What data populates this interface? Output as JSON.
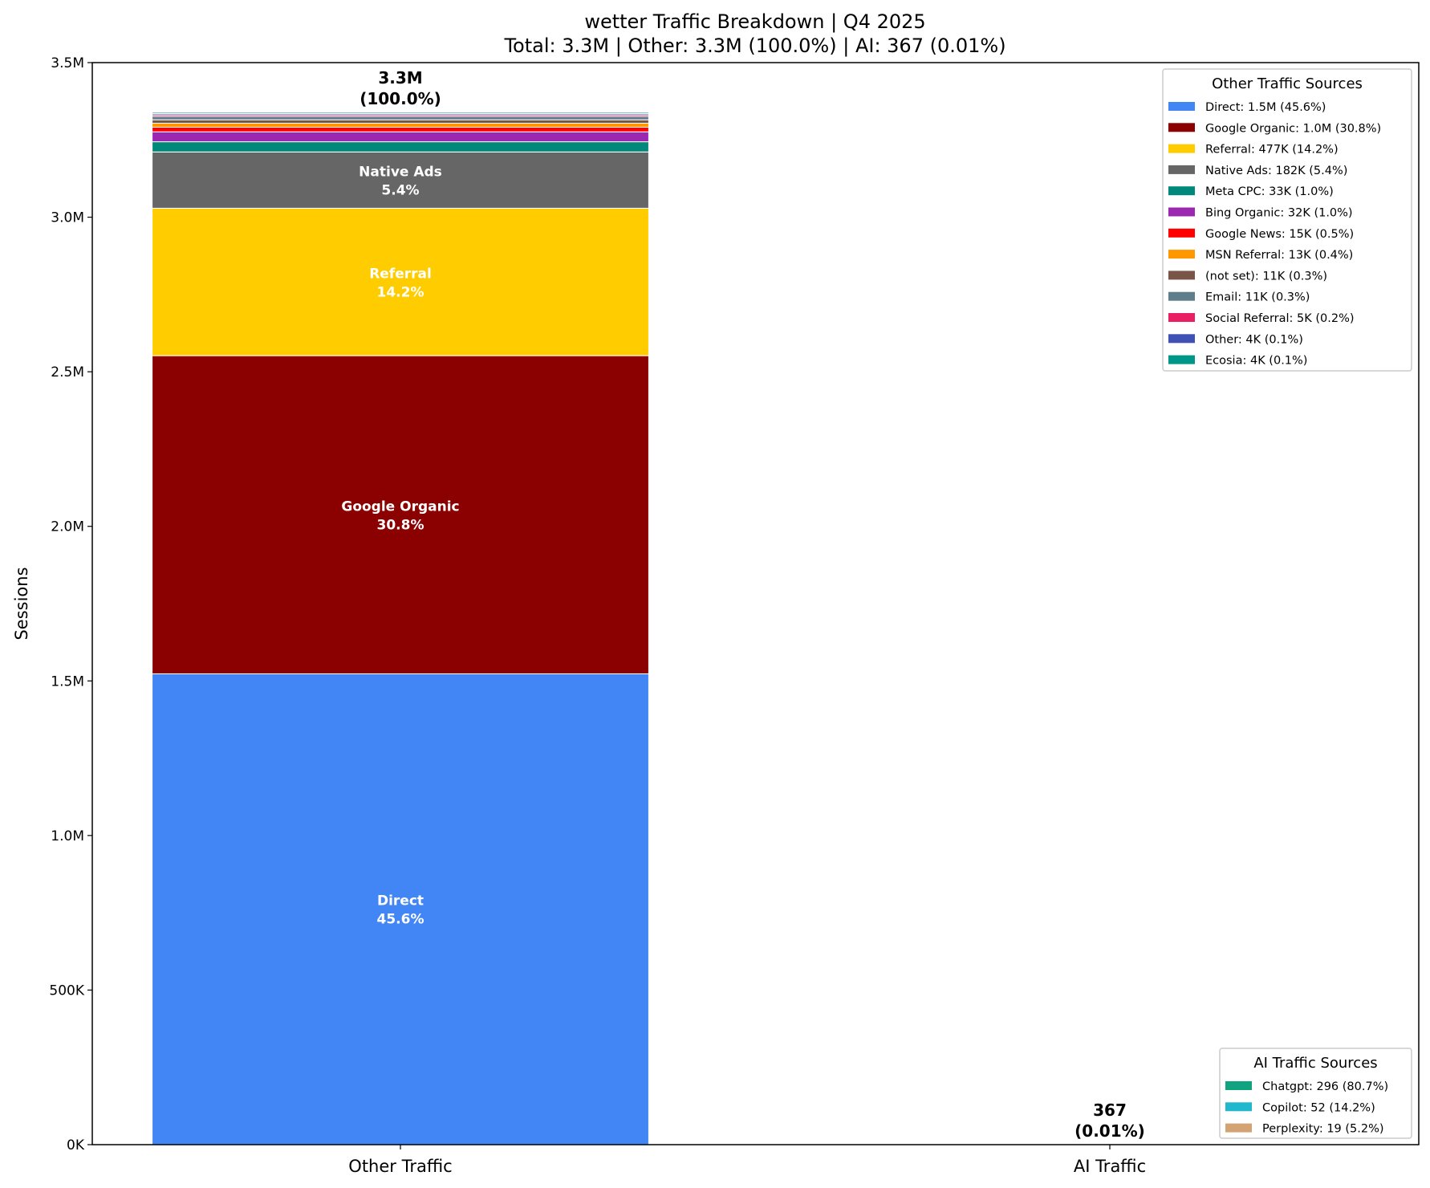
{
  "chart_data": {
    "type": "bar",
    "stacked": true,
    "title": "wetter Traffic Breakdown | Q4 2025",
    "subtitle": "Total: 3.3M | Other: 3.3M (100.0%) | AI: 367 (0.01%)",
    "xlabel": "",
    "ylabel": "Sessions",
    "ylim": [
      0,
      3500000
    ],
    "yticks": [
      0,
      500000,
      1000000,
      1500000,
      2000000,
      2500000,
      3000000,
      3500000
    ],
    "ytick_labels": [
      "0K",
      "500K",
      "1.0M",
      "1.5M",
      "2.0M",
      "2.5M",
      "3.0M",
      "3.5M"
    ],
    "grid": false,
    "categories": [
      "Other Traffic",
      "AI Traffic"
    ],
    "totals": [
      {
        "line1": "3.3M",
        "line2": "(100.0%)",
        "value": 3339000
      },
      {
        "line1": "367",
        "line2": "(0.01%)",
        "value": 367
      }
    ],
    "other_series": [
      {
        "name": "Direct",
        "value": 1523000,
        "label": "Direct: 1.5M (45.6%)",
        "pct": "45.6%",
        "color": "#4285F4",
        "inbar": true
      },
      {
        "name": "Google Organic",
        "value": 1029000,
        "label": "Google Organic: 1.0M (30.8%)",
        "pct": "30.8%",
        "color": "#8B0000",
        "inbar": true
      },
      {
        "name": "Referral",
        "value": 477000,
        "label": "Referral: 477K (14.2%)",
        "pct": "14.2%",
        "color": "#FFCC00",
        "inbar": true
      },
      {
        "name": "Native Ads",
        "value": 182000,
        "label": "Native Ads: 182K (5.4%)",
        "pct": "5.4%",
        "color": "#666666",
        "inbar": true
      },
      {
        "name": "Meta CPC",
        "value": 33000,
        "label": "Meta CPC: 33K (1.0%)",
        "pct": "1.0%",
        "color": "#00897B",
        "inbar": false
      },
      {
        "name": "Bing Organic",
        "value": 32000,
        "label": "Bing Organic: 32K (1.0%)",
        "pct": "1.0%",
        "color": "#9C27B0",
        "inbar": false
      },
      {
        "name": "Google News",
        "value": 15000,
        "label": "Google News: 15K (0.5%)",
        "pct": "0.5%",
        "color": "#FF0000",
        "inbar": false
      },
      {
        "name": "MSN Referral",
        "value": 13000,
        "label": "MSN Referral: 13K (0.4%)",
        "pct": "0.4%",
        "color": "#FF9800",
        "inbar": false
      },
      {
        "name": "(not set)",
        "value": 11000,
        "label": "(not set): 11K (0.3%)",
        "pct": "0.3%",
        "color": "#795548",
        "inbar": false
      },
      {
        "name": "Email",
        "value": 11000,
        "label": "Email: 11K (0.3%)",
        "pct": "0.3%",
        "color": "#607D8B",
        "inbar": false
      },
      {
        "name": "Social Referral",
        "value": 5000,
        "label": "Social Referral: 5K (0.2%)",
        "pct": "0.2%",
        "color": "#E91E63",
        "inbar": false
      },
      {
        "name": "Other",
        "value": 4000,
        "label": "Other: 4K (0.1%)",
        "pct": "0.1%",
        "color": "#3F51B5",
        "inbar": false
      },
      {
        "name": "Ecosia",
        "value": 4000,
        "label": "Ecosia: 4K (0.1%)",
        "pct": "0.1%",
        "color": "#009688",
        "inbar": false
      }
    ],
    "ai_series": [
      {
        "name": "Chatgpt",
        "value": 296,
        "label": "Chatgpt: 296 (80.7%)",
        "color": "#10A37F"
      },
      {
        "name": "Copilot",
        "value": 52,
        "label": "Copilot: 52 (14.2%)",
        "color": "#1FB8CD"
      },
      {
        "name": "Perplexity",
        "value": 19,
        "label": "Perplexity: 19 (5.2%)",
        "color": "#D4A373"
      }
    ],
    "legends": [
      {
        "title": "Other Traffic Sources",
        "placement": "top-right"
      },
      {
        "title": "AI Traffic Sources",
        "placement": "bottom-right"
      }
    ]
  }
}
